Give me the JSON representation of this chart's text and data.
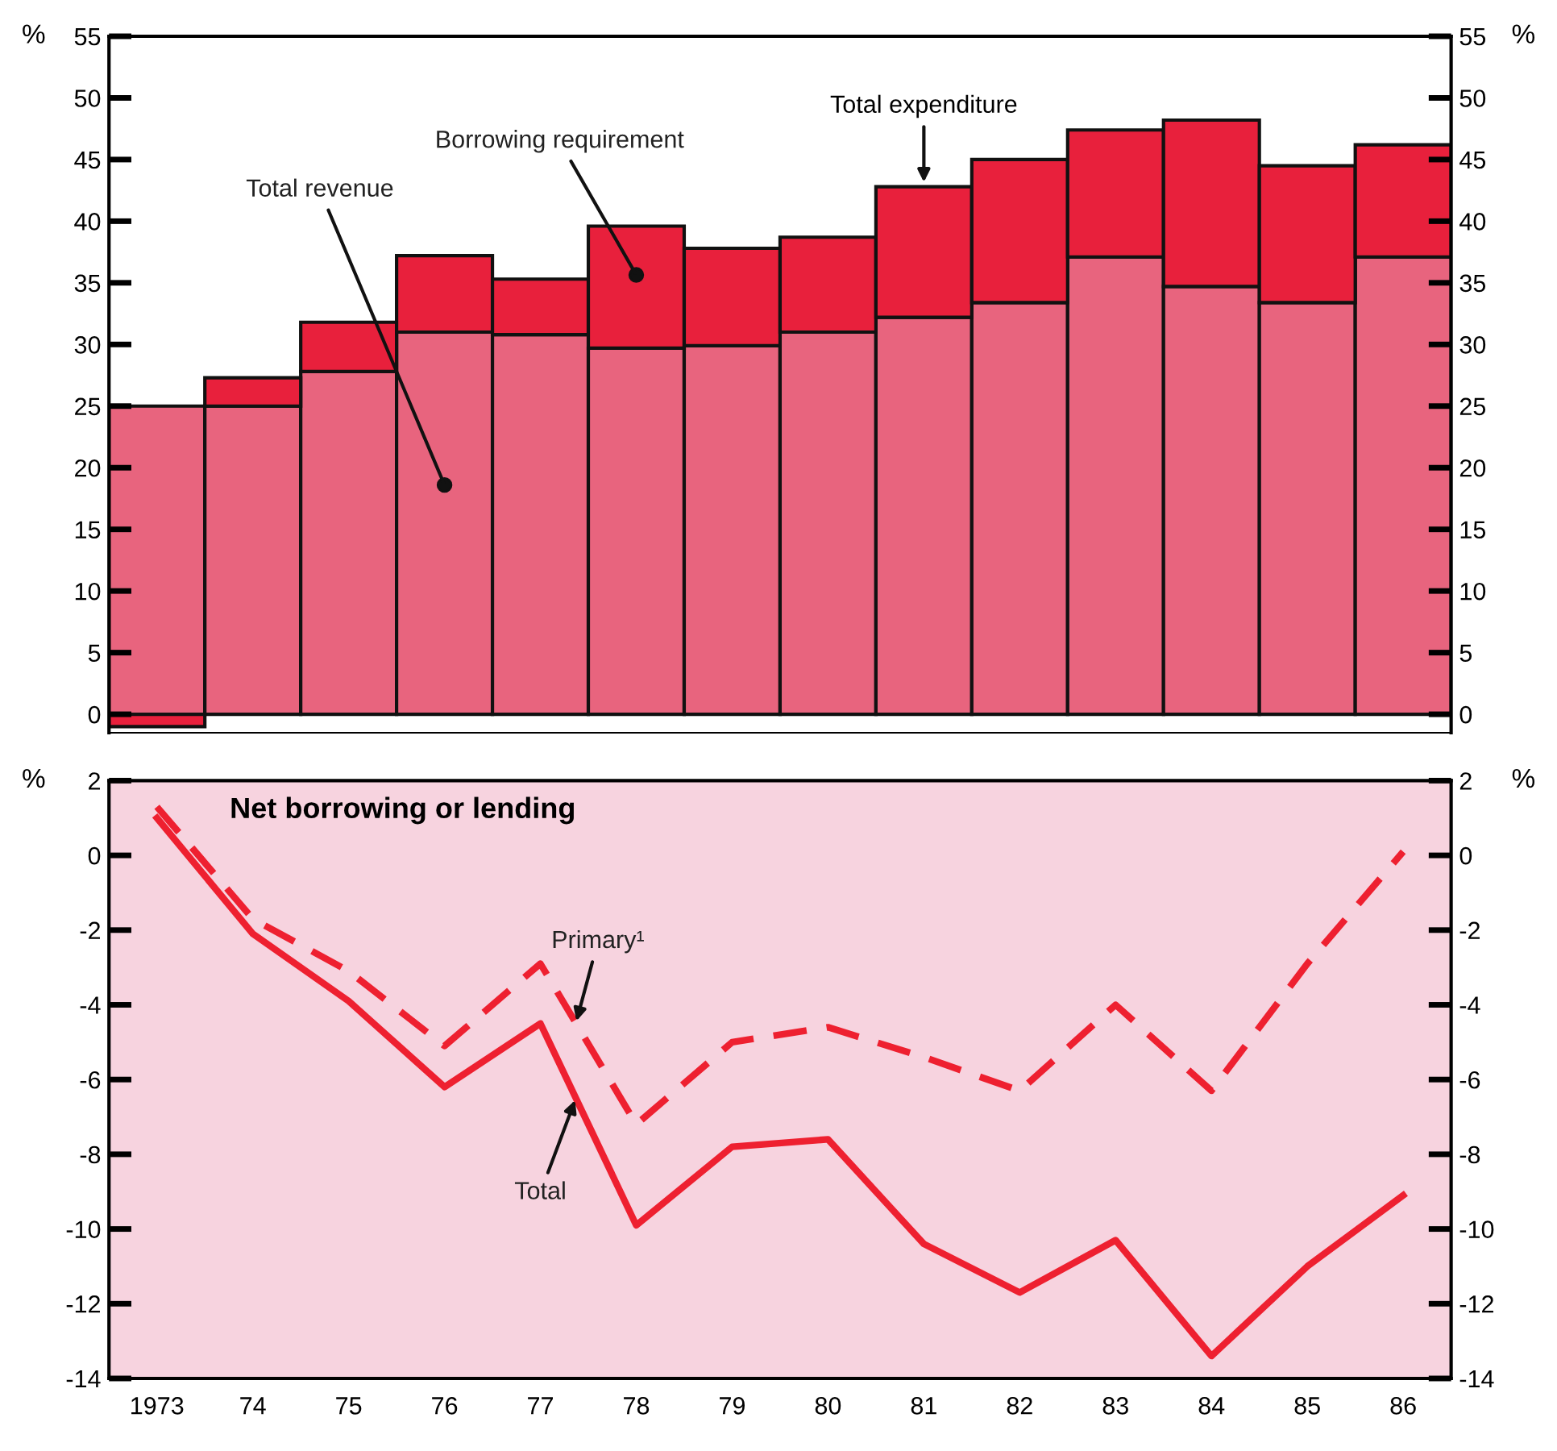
{
  "chart_data": [
    {
      "type": "bar",
      "stacked": true,
      "categories": [
        "1973",
        "74",
        "75",
        "76",
        "77",
        "78",
        "79",
        "80",
        "81",
        "82",
        "83",
        "84",
        "85",
        "86"
      ],
      "series": [
        {
          "name": "Total revenue",
          "color": "#e8647e",
          "values": [
            25,
            25,
            27.8,
            31,
            30.8,
            29.7,
            29.9,
            31,
            32.2,
            33.4,
            37.1,
            34.7,
            33.4,
            37.1
          ]
        },
        {
          "name": "Borrowing requirement",
          "color": "#e8203c",
          "values": [
            -1,
            2.3,
            4,
            6.2,
            4.5,
            9.9,
            7.9,
            7.7,
            10.6,
            11.6,
            10.3,
            13.5,
            11.1,
            9.1
          ]
        }
      ],
      "annotations": [
        {
          "text": "Total expenditure",
          "x": "81",
          "y": 42.8
        }
      ],
      "ylabel": "%",
      "y2label": "%",
      "ylim": [
        -1.5,
        55
      ],
      "yticks": [
        0,
        5,
        10,
        15,
        20,
        25,
        30,
        35,
        40,
        45,
        50,
        55
      ],
      "y2lim": [
        -1.5,
        55
      ],
      "y2ticks": [
        0,
        5,
        10,
        15,
        20,
        25,
        30,
        35,
        40,
        45,
        50,
        55
      ],
      "tick_labels": "y",
      "grid": false
    },
    {
      "type": "line",
      "title": "Net borrowing or lending",
      "categories": [
        "1973",
        "74",
        "75",
        "76",
        "77",
        "78",
        "79",
        "80",
        "81",
        "82",
        "83",
        "84",
        "85",
        "86"
      ],
      "series": [
        {
          "name": "Total",
          "color": "#ee2030",
          "line_style": "solid",
          "values": [
            1.0,
            -2.1,
            -3.9,
            -6.2,
            -4.5,
            -9.9,
            -7.8,
            -7.6,
            -10.4,
            -11.7,
            -10.3,
            -13.4,
            -11.0,
            -9.1
          ]
        },
        {
          "name": "Primary¹",
          "color": "#ee2030",
          "line_style": "dashed",
          "values": [
            1.3,
            -1.7,
            -3.1,
            -5.1,
            -2.9,
            -7.2,
            -5.0,
            -4.6,
            -5.4,
            -6.3,
            -4.0,
            -6.3,
            -2.9,
            0.1
          ]
        }
      ],
      "ylabel": "%",
      "y2label": "%",
      "ylim": [
        -14,
        2
      ],
      "yticks": [
        -14,
        -12,
        -10,
        -8,
        -6,
        -4,
        -2,
        0,
        2
      ],
      "y2lim": [
        -14,
        2
      ],
      "y2ticks": [
        -14,
        -12,
        -10,
        -8,
        -6,
        -4,
        -2,
        0,
        2
      ],
      "grid": false,
      "marker": "none"
    }
  ]
}
